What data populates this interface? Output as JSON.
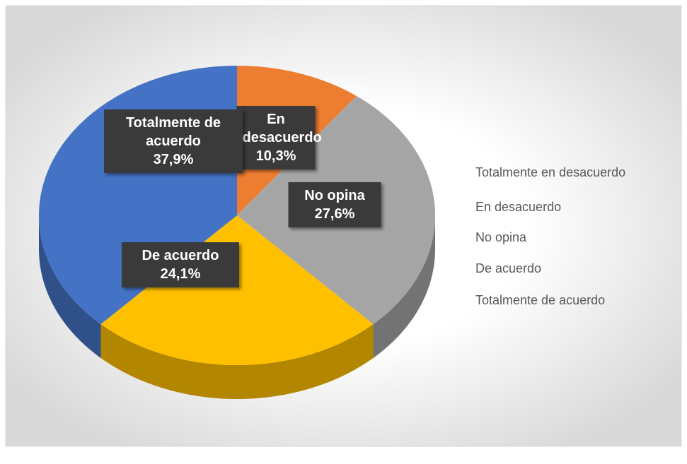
{
  "chart_data": {
    "type": "pie3d",
    "categories": [
      "Totalmente en desacuerdo",
      "En desacuerdo",
      "No opina",
      "De acuerdo",
      "Totalmente de acuerdo"
    ],
    "values": [
      0,
      10.3,
      27.6,
      24.1,
      37.9
    ],
    "value_labels": [
      null,
      "10,3%",
      "27,6%",
      "24,1%",
      "37,9%"
    ],
    "colors": [
      "#5b9bd5",
      "#ed7d31",
      "#a5a5a5",
      "#ffc000",
      "#4472c4"
    ],
    "legend": "right"
  }
}
